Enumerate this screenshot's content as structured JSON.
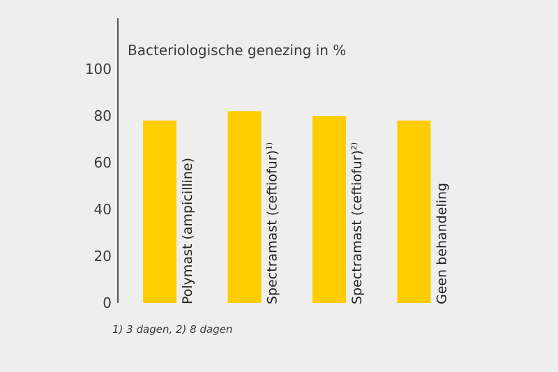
{
  "chart_data": {
    "type": "bar",
    "title": "Bacteriologische genezing in %",
    "categories": [
      "Polymast (ampicilline)",
      "Spectramast (ceftiofur)",
      "Spectramast (ceftiofur)",
      "Geen behandeling"
    ],
    "category_footnotes": [
      "",
      "1)",
      "2)",
      ""
    ],
    "values": [
      78,
      82,
      80,
      78
    ],
    "ylim": [
      0,
      120
    ],
    "yticks": [
      0,
      20,
      40,
      60,
      80,
      100
    ],
    "grid": false,
    "bar_color": "#ffcc00",
    "footnote": "1) 3 dagen, 2) 8 dagen"
  }
}
